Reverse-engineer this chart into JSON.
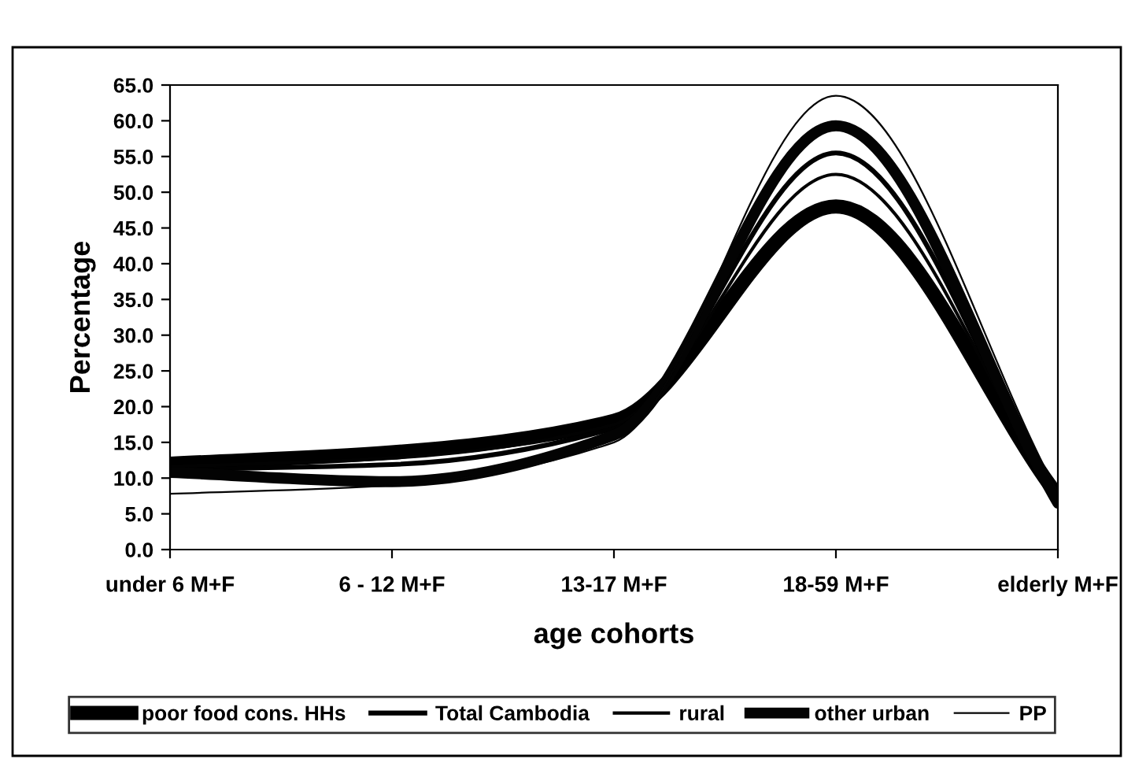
{
  "chart_data": {
    "type": "line",
    "xlabel": "age cohorts",
    "ylabel": "Percentage",
    "categories": [
      "under 6 M+F",
      "6 - 12 M+F",
      "13-17 M+F",
      "18-59 M+F",
      "elderly M+F"
    ],
    "series": [
      {
        "name": "poor food cons. HHs",
        "color": "#000000",
        "values": [
          12.0,
          13.6,
          18.0,
          48.0,
          7.5
        ]
      },
      {
        "name": "Total Cambodia",
        "color": "#010101",
        "values": [
          11.2,
          11.9,
          17.0,
          55.5,
          7.0
        ]
      },
      {
        "name": "rural",
        "color": "#020202",
        "values": [
          11.6,
          12.8,
          17.5,
          52.5,
          7.5
        ]
      },
      {
        "name": "other urban",
        "color": "#030303",
        "values": [
          10.8,
          9.5,
          16.0,
          59.3,
          6.5
        ]
      },
      {
        "name": "PP",
        "color": "#040404",
        "values": [
          7.8,
          9.0,
          15.0,
          63.5,
          8.0
        ]
      }
    ],
    "ylim": [
      0,
      65
    ],
    "yticks": [
      {
        "value": 0,
        "label": "0.0"
      },
      {
        "value": 5,
        "label": "5.0"
      },
      {
        "value": 10,
        "label": "10.0"
      },
      {
        "value": 15,
        "label": "15.0"
      },
      {
        "value": 20,
        "label": "20.0"
      },
      {
        "value": 25,
        "label": "25.0"
      },
      {
        "value": 30,
        "label": "30.0"
      },
      {
        "value": 35,
        "label": "35.0"
      },
      {
        "value": 40,
        "label": "40.0"
      },
      {
        "value": 45,
        "label": "45.0"
      },
      {
        "value": 50,
        "label": "50.0"
      },
      {
        "value": 55,
        "label": "55.0"
      },
      {
        "value": 60,
        "label": "60.0"
      },
      {
        "value": 65,
        "label": "65.0"
      }
    ],
    "grid": false,
    "legend": "bottom",
    "marker": "none",
    "line_style": "solid"
  }
}
